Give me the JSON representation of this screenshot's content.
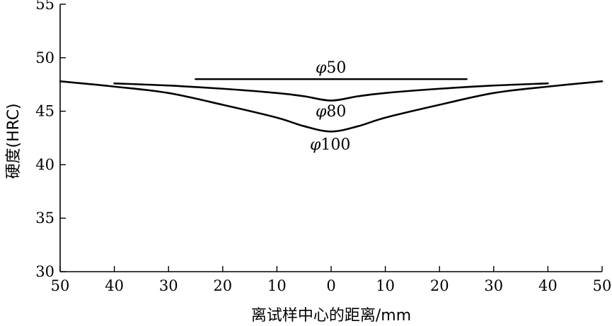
{
  "chart_data": {
    "type": "line",
    "ylabel": "硬度(HRC)",
    "xlabel": "离试样中心的距离/mm",
    "xlim": [
      -50,
      50
    ],
    "ylim": [
      30,
      55
    ],
    "x_ticks": [
      -50,
      -40,
      -30,
      -20,
      -10,
      0,
      10,
      20,
      30,
      40,
      50
    ],
    "x_tick_labels": [
      "50",
      "40",
      "30",
      "20",
      "10",
      "0",
      "10",
      "20",
      "30",
      "40",
      "50"
    ],
    "y_ticks": [
      30,
      35,
      40,
      45,
      50,
      55
    ],
    "y_tick_labels": [
      "30",
      "35",
      "40",
      "45",
      "50",
      "55"
    ],
    "series": [
      {
        "label_prefix": "φ",
        "label_number": "50",
        "x": [
          -25,
          -15,
          -5,
          0,
          5,
          15,
          25
        ],
        "y": [
          48.0,
          48.0,
          48.0,
          48.0,
          48.0,
          48.0,
          48.0
        ]
      },
      {
        "label_prefix": "φ",
        "label_number": "80",
        "x": [
          -40,
          -30,
          -20,
          -10,
          -5,
          0,
          5,
          10,
          20,
          30,
          40
        ],
        "y": [
          47.6,
          47.4,
          47.1,
          46.7,
          46.4,
          46.0,
          46.4,
          46.7,
          47.1,
          47.4,
          47.6
        ]
      },
      {
        "label_prefix": "φ",
        "label_number": "100",
        "x": [
          -50,
          -40,
          -30,
          -20,
          -10,
          -5,
          0,
          5,
          10,
          20,
          30,
          40,
          50
        ],
        "y": [
          47.8,
          47.3,
          46.7,
          45.6,
          44.4,
          43.6,
          43.1,
          43.6,
          44.4,
          45.6,
          46.7,
          47.3,
          47.8
        ]
      }
    ]
  }
}
